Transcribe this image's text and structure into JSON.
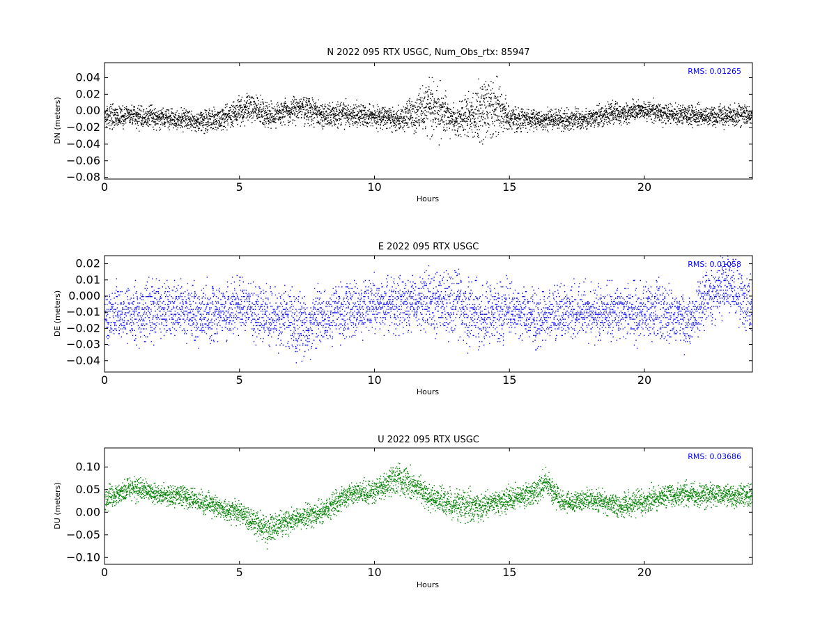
{
  "chart_data": [
    {
      "type": "scatter",
      "title": "N 2022 095 RTX  USGC, Num_Obs_rtx: 85947",
      "xlabel": "Hours",
      "ylabel": "DN (meters)",
      "rms_label": "RMS:  0.01265",
      "xlim": [
        0,
        24
      ],
      "ylim": [
        -0.082,
        0.058
      ],
      "xticks": [
        0,
        5,
        10,
        15,
        20
      ],
      "xtick_labels": [
        "0",
        "5",
        "10",
        "15",
        "20"
      ],
      "yticks": [
        -0.08,
        -0.06,
        -0.04,
        -0.02,
        0.0,
        0.02,
        0.04
      ],
      "ytick_labels": [
        "−0.08",
        "−0.06",
        "−0.04",
        "−0.02",
        "0.00",
        "0.02",
        "0.04"
      ],
      "grid": false,
      "color": "#000000",
      "series": [
        {
          "x": [
            0,
            1,
            2,
            3,
            4,
            5,
            5.5,
            6,
            7,
            7.5,
            8,
            9,
            10,
            11,
            11.5,
            12,
            12.3,
            12.8,
            13,
            13.5,
            14,
            14.5,
            15,
            16,
            17,
            18,
            19,
            20,
            21,
            22,
            23,
            24
          ],
          "center": [
            -0.005,
            -0.006,
            -0.008,
            -0.01,
            -0.012,
            0.0,
            0.005,
            -0.005,
            0.002,
            0.004,
            -0.005,
            -0.003,
            -0.006,
            -0.01,
            0.0,
            0.005,
            0.005,
            -0.005,
            -0.012,
            -0.005,
            0.0,
            0.004,
            -0.008,
            -0.01,
            -0.01,
            -0.008,
            -0.002,
            0.0,
            -0.004,
            -0.005,
            -0.006,
            -0.004
          ],
          "spread": [
            0.01,
            0.009,
            0.009,
            0.009,
            0.011,
            0.012,
            0.012,
            0.011,
            0.012,
            0.012,
            0.011,
            0.01,
            0.01,
            0.01,
            0.018,
            0.022,
            0.024,
            0.016,
            0.012,
            0.02,
            0.026,
            0.022,
            0.012,
            0.009,
            0.009,
            0.009,
            0.009,
            0.009,
            0.009,
            0.009,
            0.009,
            0.009
          ]
        }
      ]
    },
    {
      "type": "scatter",
      "title": "E 2022 095 RTX  USGC",
      "xlabel": "Hours",
      "ylabel": "DE (meters)",
      "rms_label": "RMS:  0.01058",
      "xlim": [
        0,
        24
      ],
      "ylim": [
        -0.047,
        0.025
      ],
      "xticks": [
        0,
        5,
        10,
        15,
        20
      ],
      "xtick_labels": [
        "0",
        "5",
        "10",
        "15",
        "20"
      ],
      "yticks": [
        -0.04,
        -0.03,
        -0.02,
        -0.01,
        0.0,
        0.01,
        0.02
      ],
      "ytick_labels": [
        "−0.04",
        "−0.03",
        "−0.02",
        "−0.01",
        "0.000",
        "0.01",
        "0.02"
      ],
      "grid": false,
      "color": "#0000ff",
      "series": [
        {
          "x": [
            0,
            1,
            2,
            3,
            4,
            5,
            5.5,
            6,
            7,
            7.5,
            8,
            9,
            10,
            11,
            12,
            13,
            13.5,
            14,
            15,
            16,
            17,
            18,
            19,
            20,
            21,
            21.7,
            22,
            22.5,
            23,
            23.5,
            24
          ],
          "center": [
            -0.012,
            -0.01,
            -0.008,
            -0.009,
            -0.01,
            -0.005,
            -0.01,
            -0.012,
            -0.016,
            -0.02,
            -0.012,
            -0.009,
            -0.005,
            -0.005,
            -0.003,
            -0.004,
            -0.01,
            -0.01,
            -0.008,
            -0.013,
            -0.01,
            -0.01,
            -0.009,
            -0.01,
            -0.01,
            -0.017,
            -0.005,
            0.0,
            0.008,
            0.0,
            -0.008
          ],
          "spread": [
            0.012,
            0.012,
            0.013,
            0.012,
            0.012,
            0.012,
            0.012,
            0.013,
            0.014,
            0.014,
            0.013,
            0.012,
            0.012,
            0.012,
            0.013,
            0.014,
            0.016,
            0.014,
            0.012,
            0.012,
            0.012,
            0.012,
            0.012,
            0.013,
            0.012,
            0.012,
            0.012,
            0.012,
            0.012,
            0.012,
            0.012
          ]
        }
      ]
    },
    {
      "type": "scatter",
      "title": "U 2022 095 RTX  USGC",
      "xlabel": "Hours",
      "ylabel": "DU (meters)",
      "rms_label": "RMS:  0.03686",
      "xlim": [
        0,
        24
      ],
      "ylim": [
        -0.115,
        0.142
      ],
      "xticks": [
        0,
        5,
        10,
        15,
        20
      ],
      "xtick_labels": [
        "0",
        "5",
        "10",
        "15",
        "20"
      ],
      "yticks": [
        -0.1,
        -0.05,
        0.0,
        0.05,
        0.1
      ],
      "ytick_labels": [
        "−0.10",
        "−0.05",
        "0.00",
        "0.05",
        "0.10"
      ],
      "grid": false,
      "color": "#008000",
      "series": [
        {
          "x": [
            0,
            1,
            2,
            3,
            4,
            5,
            5.5,
            6,
            7,
            8,
            9,
            10,
            10.8,
            11.5,
            12,
            13,
            13.5,
            14,
            15,
            16,
            16.3,
            17,
            18,
            19,
            20,
            21,
            22,
            23,
            24
          ],
          "center": [
            0.03,
            0.055,
            0.04,
            0.035,
            0.015,
            0.0,
            -0.02,
            -0.04,
            -0.015,
            0.0,
            0.04,
            0.05,
            0.075,
            0.06,
            0.035,
            0.02,
            0.01,
            0.015,
            0.03,
            0.045,
            0.07,
            0.02,
            0.03,
            0.015,
            0.025,
            0.04,
            0.04,
            0.04,
            0.035
          ],
          "spread": [
            0.018,
            0.018,
            0.017,
            0.017,
            0.017,
            0.018,
            0.02,
            0.024,
            0.02,
            0.018,
            0.018,
            0.02,
            0.025,
            0.022,
            0.02,
            0.024,
            0.028,
            0.022,
            0.02,
            0.02,
            0.02,
            0.018,
            0.017,
            0.017,
            0.02,
            0.02,
            0.02,
            0.018,
            0.018
          ]
        }
      ]
    }
  ]
}
